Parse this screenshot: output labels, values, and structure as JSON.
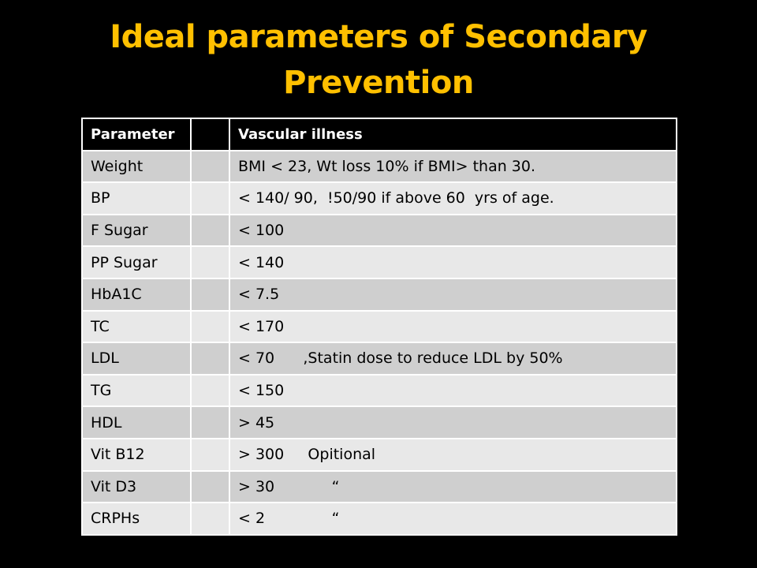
{
  "slide": {
    "title_line1": "Ideal parameters of Secondary",
    "title_line2": "Prevention",
    "title_color": "#FFC000",
    "background_color": "#000000"
  },
  "table": {
    "headers": [
      "Parameter",
      "",
      "Vascular illness"
    ],
    "rows": [
      {
        "parameter": "Weight",
        "blank": "",
        "value": "BMI < 23, Wt loss 10% if BMI> than 30."
      },
      {
        "parameter": "BP",
        "blank": "",
        "value": "< 140/ 90,  !50/90 if above 60  yrs of age."
      },
      {
        "parameter": "F Sugar",
        "blank": "",
        "value": "< 100"
      },
      {
        "parameter": "PP Sugar",
        "blank": "",
        "value": "< 140"
      },
      {
        "parameter": "HbA1C",
        "blank": "",
        "value": "< 7.5"
      },
      {
        "parameter": "TC",
        "blank": "",
        "value": "< 170"
      },
      {
        "parameter": "LDL",
        "blank": "",
        "value": "< 70      ,Statin dose to reduce LDL by 50%"
      },
      {
        "parameter": "TG",
        "blank": "",
        "value": "< 150"
      },
      {
        "parameter": "HDL",
        "blank": "",
        "value": "> 45"
      },
      {
        "parameter": "Vit B12",
        "blank": "",
        "value": "> 300     Opitional"
      },
      {
        "parameter": "Vit D3",
        "blank": "",
        "value": "> 30            “"
      },
      {
        "parameter": "CRPHs",
        "blank": "",
        "value": "< 2              “"
      }
    ],
    "odd_row_color": "#CFCFCF",
    "even_row_color": "#E8E8E8",
    "header_color": "#000000"
  }
}
